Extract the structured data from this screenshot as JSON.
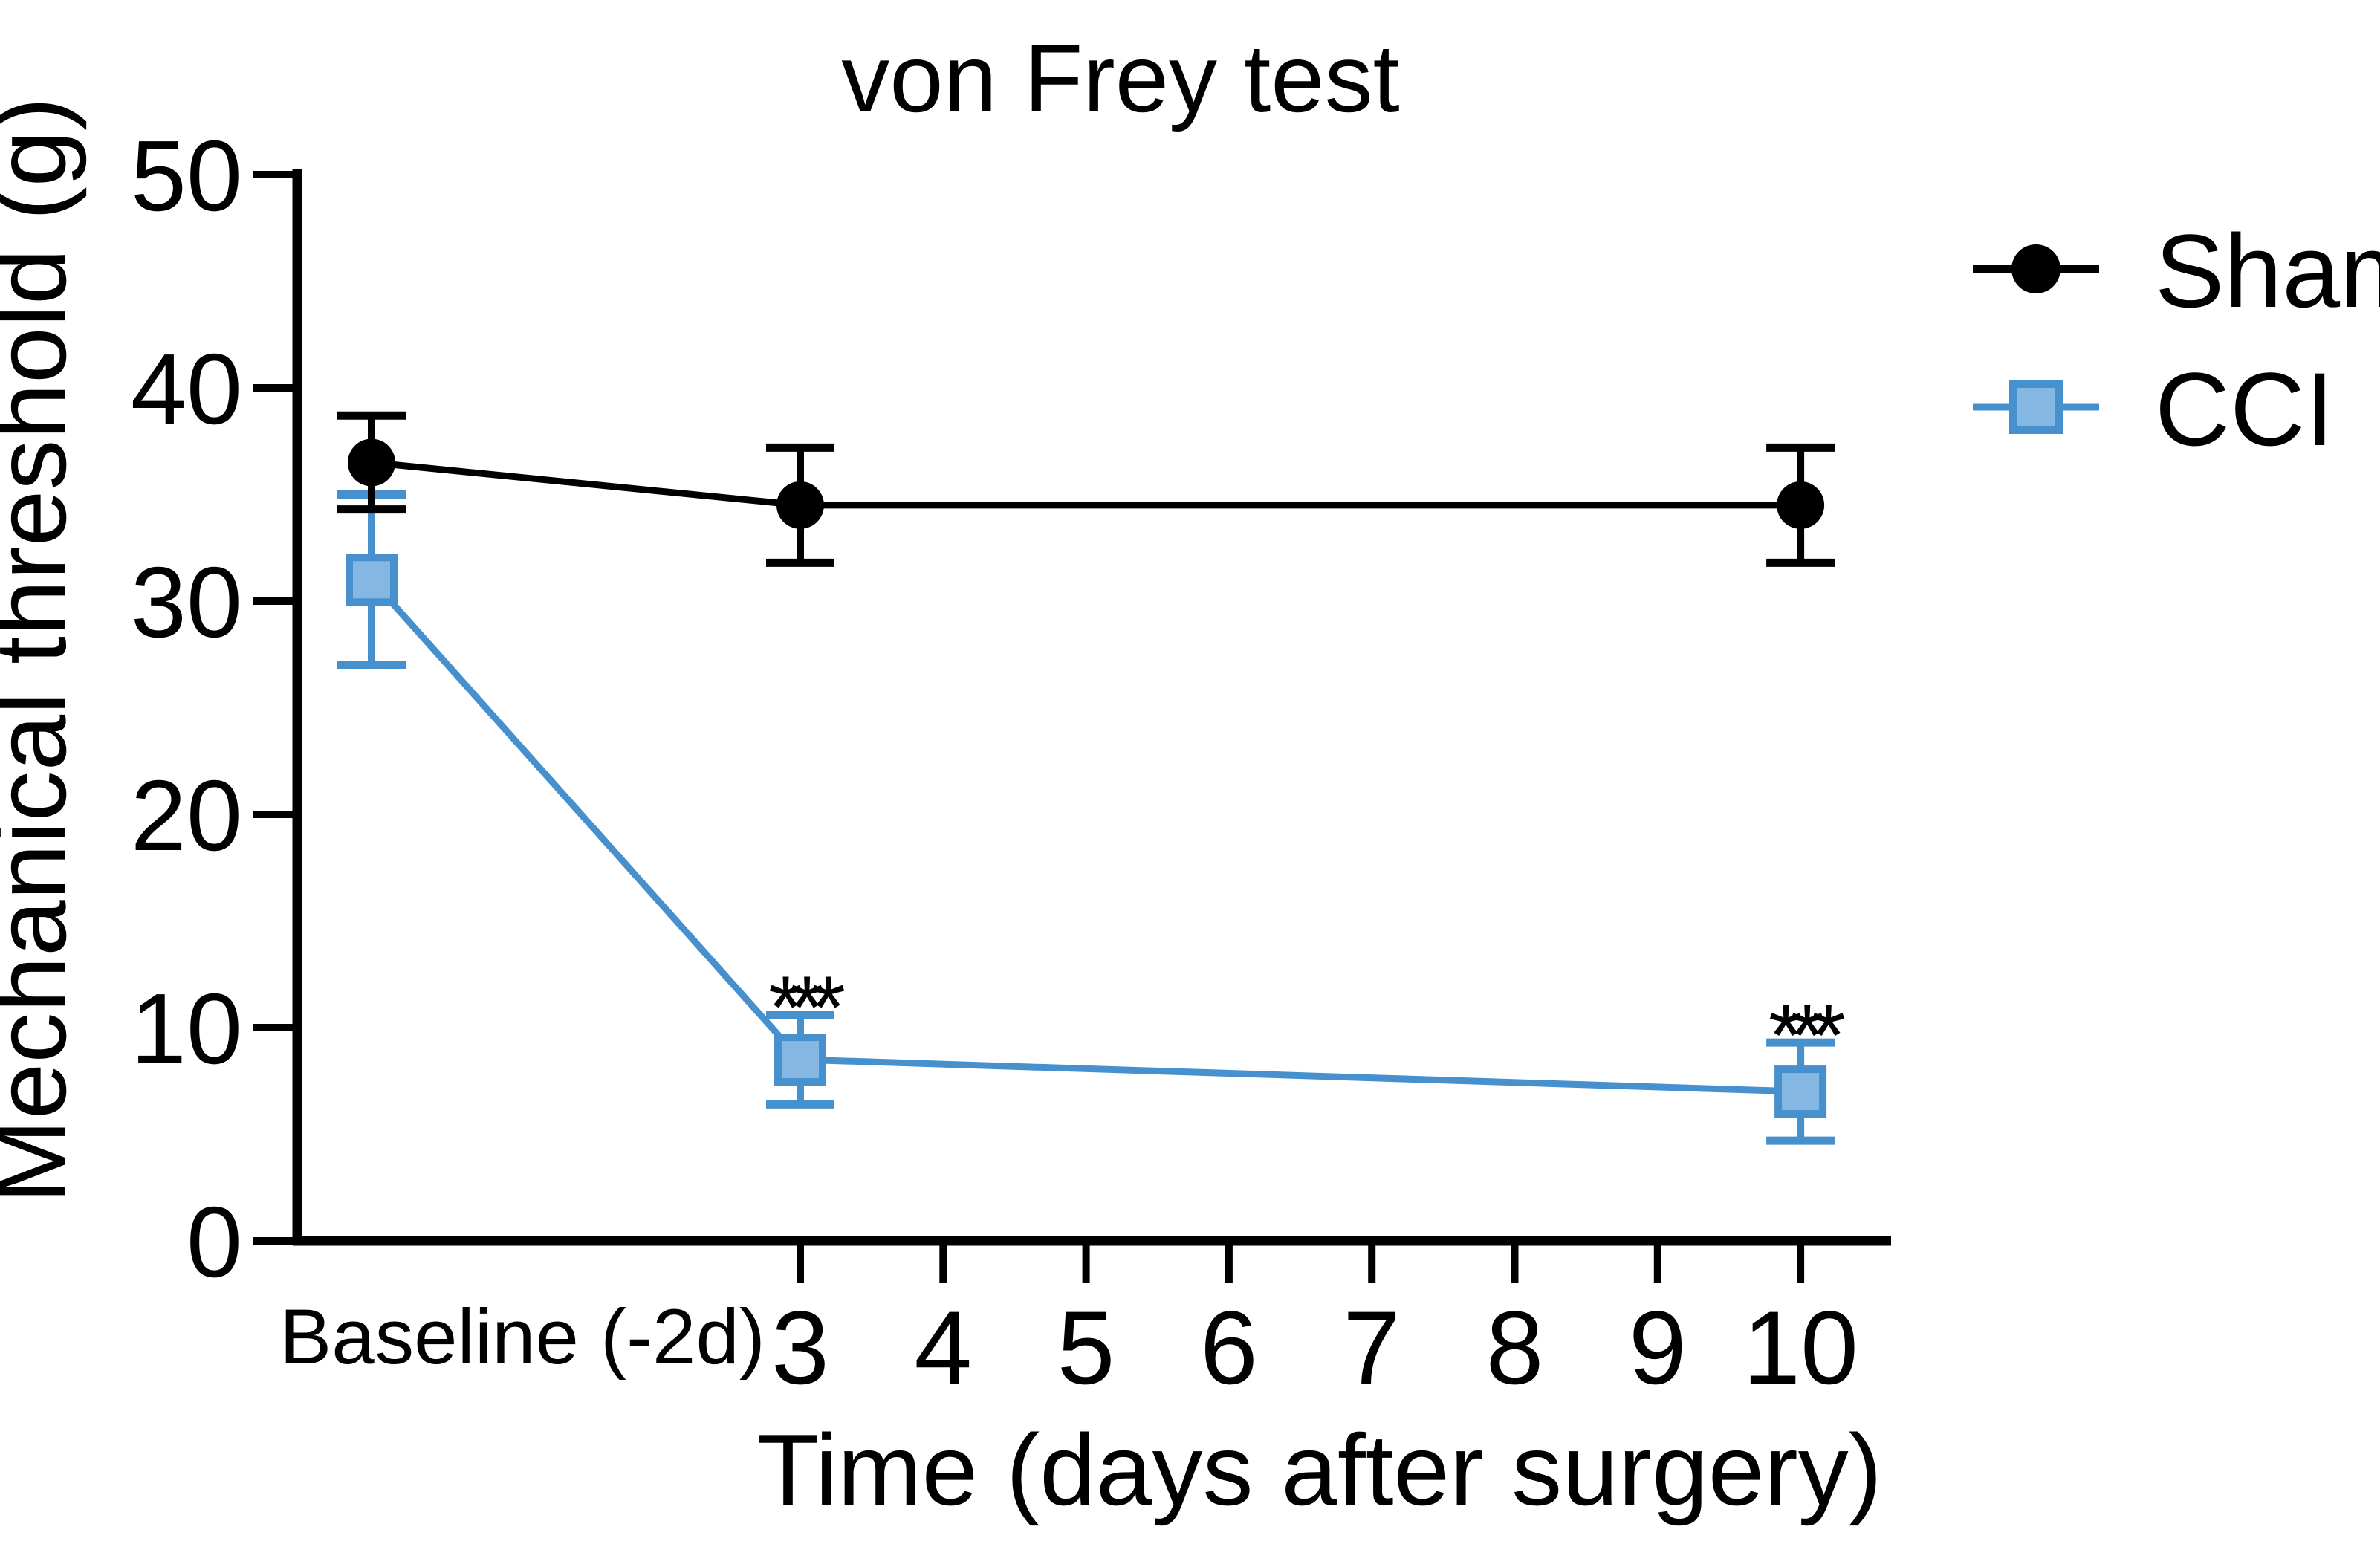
{
  "figure": {
    "title": "von Frey test",
    "x_label": "Time (days after surgery)",
    "y_label": "Mechanical threshold (g)"
  },
  "legend": {
    "items": [
      {
        "label": "Sham"
      },
      {
        "label": "CCI"
      }
    ]
  },
  "chart_data": {
    "type": "line",
    "title": "von Frey test",
    "xlabel": "Time (days after surgery)",
    "ylabel": "Mechanical threshold (g)",
    "ylim": [
      0,
      50
    ],
    "yticks": [
      0,
      10,
      20,
      30,
      40,
      50
    ],
    "x_tick_labels": [
      "3",
      "4",
      "5",
      "6",
      "7",
      "8",
      "9",
      "10"
    ],
    "baseline_label": "Baseline (-2d)",
    "grid": false,
    "legend_position": "top-right-outside",
    "series": [
      {
        "name": "Sham",
        "marker": "circle",
        "color": "#000000",
        "fill": "#000000",
        "points": [
          {
            "x": "baseline",
            "y": 36.5,
            "err": 2.2
          },
          {
            "x": 3,
            "y": 34.5,
            "err": 2.7
          },
          {
            "x": 10,
            "y": 34.5,
            "err": 2.7
          }
        ]
      },
      {
        "name": "CCI",
        "marker": "square",
        "color": "#4690CE",
        "fill": "#84B8E2",
        "points": [
          {
            "x": "baseline",
            "y": 31,
            "err": 4
          },
          {
            "x": 3,
            "y": 8.5,
            "err": 2.1
          },
          {
            "x": 10,
            "y": 7,
            "err": 2.3
          }
        ]
      }
    ],
    "annotations": [
      {
        "text": "***",
        "x": 3,
        "y": 12.3
      },
      {
        "text": "***",
        "x": 10,
        "y": 11.0
      }
    ]
  },
  "colors": {
    "sham": "#000000",
    "cci_line": "#4690CE",
    "cci_fill": "#84B8E2",
    "background": "#FFFFFF",
    "text": "#000000"
  }
}
